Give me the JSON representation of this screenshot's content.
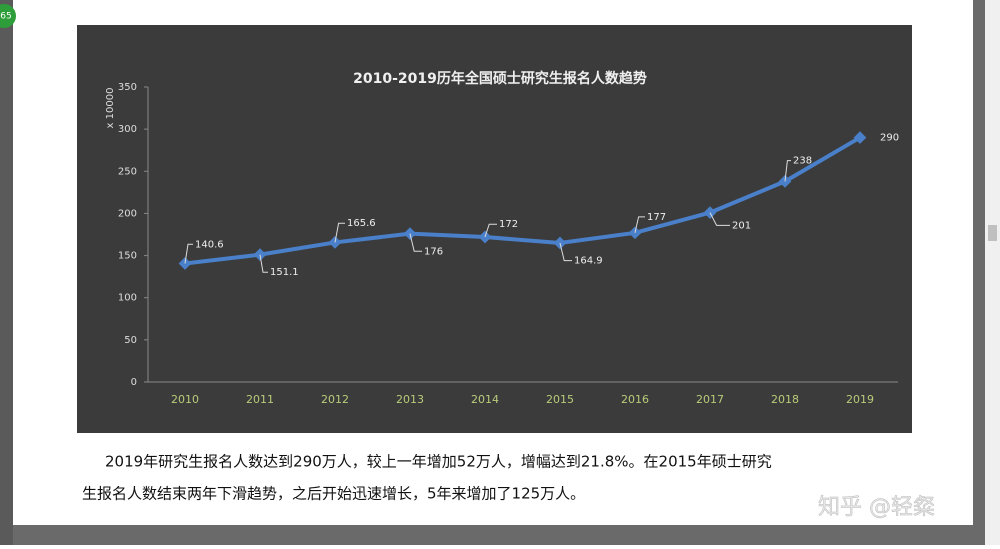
{
  "chart_data": {
    "type": "line",
    "title": "2010-2019历年全国硕士研究生报名人数趋势",
    "y_label": "x 10000",
    "categories": [
      "2010",
      "2011",
      "2012",
      "2013",
      "2014",
      "2015",
      "2016",
      "2017",
      "2018",
      "2019"
    ],
    "series": [
      {
        "name": "报名人数",
        "color": "#4a7fc9",
        "values": [
          140.6,
          151.1,
          165.6,
          176,
          172,
          164.9,
          177,
          201,
          238,
          290
        ]
      }
    ],
    "ylim": [
      0,
      350
    ],
    "yticks": [
      0,
      50,
      100,
      150,
      200,
      250,
      300,
      350
    ]
  },
  "text": {
    "paragraph_1": "2019年研究生报名人数达到290万人，较上一年增加52万人，增幅达到21.8%。在2015年硕士研究",
    "paragraph_2": "生报名人数结束两年下滑趋势，之后开始迅速增长，5年来增加了125万人。"
  },
  "badge": "65",
  "watermark": "知乎 @轻粲"
}
